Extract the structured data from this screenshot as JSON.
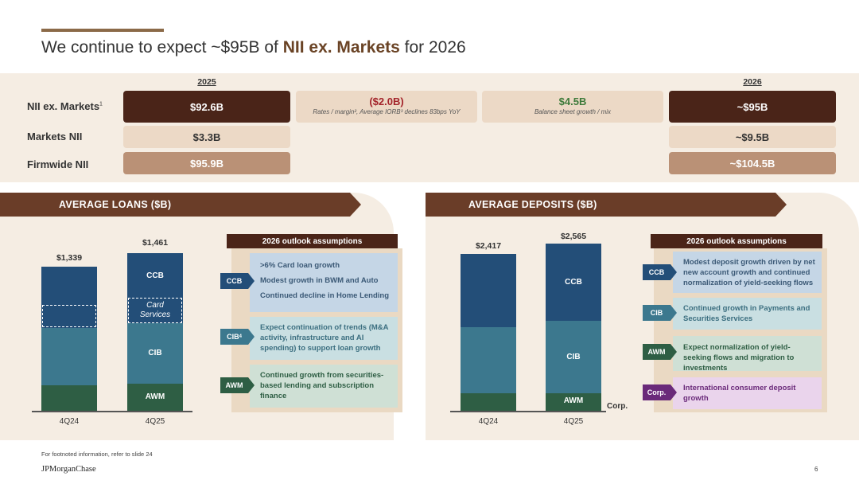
{
  "header": {
    "title_pre": "We continue to expect ~$95B of ",
    "title_hl": "NII ex. Markets",
    "title_post": " for 2026"
  },
  "nii_table": {
    "year_left": "2025",
    "year_right": "2026",
    "row_labels": [
      "NII ex. Markets",
      "Markets NII",
      "Firmwide NII"
    ],
    "row1_sup": "1",
    "values_2025": [
      "$92.6B",
      "$3.3B",
      "$95.9B"
    ],
    "values_2026": [
      "~$95B",
      "~$9.5B",
      "~$104.5B"
    ],
    "bridge_1": {
      "value": "($2.0B)",
      "note": "Rates / margin², Average IORB³ declines 83bps YoY",
      "color": "#a3232a"
    },
    "bridge_2": {
      "value": "$4.5B",
      "note": "Balance sheet growth / mix",
      "color": "#3d7a3a"
    }
  },
  "loans": {
    "banner": "AVERAGE LOANS ($B)",
    "outlook_title": "2026 outlook assumptions",
    "chart_data": {
      "type": "bar",
      "stacked": true,
      "title": "AVERAGE LOANS ($B)",
      "categories": [
        "4Q24",
        "4Q25"
      ],
      "totals": [
        "$1,339",
        "$1,461"
      ],
      "total_values": [
        1339,
        1461
      ],
      "series": [
        {
          "name": "AWM",
          "values": [
            239,
            251
          ],
          "color": "#2e5e44"
        },
        {
          "name": "CIB",
          "values": [
            526,
            564
          ],
          "color": "#3c788e"
        },
        {
          "name": "Card Services",
          "values": [
            222,
            233
          ],
          "color": "#234e78"
        },
        {
          "name": "CCB",
          "values": [
            352,
            413
          ],
          "color": "#234e78"
        }
      ],
      "segment_labels": {
        "ccb": "CCB",
        "cards": "Card Services",
        "cib": "CIB",
        "awm": "AWM"
      }
    },
    "outlook": [
      {
        "tag": "CCB",
        "tag_sup": "",
        "lines": [
          ">6% Card loan growth",
          "Modest growth in BWM and Auto",
          "Continued decline in Home Lending"
        ]
      },
      {
        "tag": "CIB",
        "tag_sup": "4",
        "text": "Expect continuation of trends (M&A activity, infrastructure and AI spending) to support loan growth"
      },
      {
        "tag": "AWM",
        "tag_sup": "",
        "text": "Continued growth from securities-based lending and subscription finance"
      }
    ]
  },
  "deposits": {
    "banner": "AVERAGE DEPOSITS ($B)",
    "outlook_title": "2026 outlook assumptions",
    "chart_data": {
      "type": "bar",
      "stacked": true,
      "title": "AVERAGE DEPOSITS ($B)",
      "categories": [
        "4Q24",
        "4Q25"
      ],
      "totals": [
        "$2,417",
        "$2,565"
      ],
      "total_values": [
        2417,
        2565
      ],
      "series": [
        {
          "name": "Corp.",
          "values": [
            25,
            25
          ],
          "color": "#2e5e44"
        },
        {
          "name": "AWM",
          "values": [
            246,
            250
          ],
          "color": "#2e5e44"
        },
        {
          "name": "CIB",
          "values": [
            1020,
            1110
          ],
          "color": "#3c788e"
        },
        {
          "name": "CCB",
          "values": [
            1126,
            1180
          ],
          "color": "#234e78"
        }
      ],
      "segment_labels": {
        "ccb": "CCB",
        "cib": "CIB",
        "awm": "AWM",
        "corp": "Corp."
      }
    },
    "outlook": [
      {
        "tag": "CCB",
        "text": "Modest deposit growth driven by net new account growth and continued normalization of yield-seeking flows"
      },
      {
        "tag": "CIB",
        "text": "Continued growth in Payments and Securities Services"
      },
      {
        "tag": "AWM",
        "text": "Expect normalization of yield-seeking flows and migration to investments"
      },
      {
        "tag": "Corp.",
        "text": "International consumer deposit growth"
      }
    ]
  },
  "footer": {
    "note": "For footnoted information, refer to slide 24",
    "logo": "JPMorganChase",
    "page": "6"
  }
}
